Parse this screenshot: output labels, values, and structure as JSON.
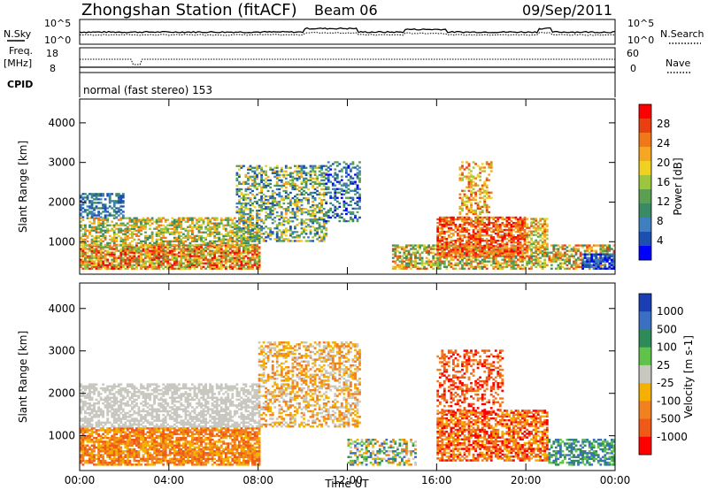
{
  "header": {
    "station": "Zhongshan Station (fitACF)",
    "beam": "Beam 06",
    "date": "09/Sep/2011"
  },
  "noise_panel": {
    "left_label": "N.Sky",
    "left_ticks": [
      "10^5",
      "10^0"
    ],
    "right_ticks": [
      "10^5",
      "10^0"
    ],
    "right_label": "N.Search"
  },
  "freq_panel": {
    "left_label_1": "Freq.",
    "left_label_2": "[MHz]",
    "left_ticks": [
      "18",
      "8"
    ],
    "right_ticks": [
      "60",
      "0"
    ],
    "right_label": "Nave"
  },
  "cpid_panel": {
    "label": "CPID",
    "text": "normal (fast stereo) 153"
  },
  "chart_data": [
    {
      "type": "heatmap",
      "quantity": "Power",
      "xlabel": "",
      "ylabel": "Slant Range [km]",
      "xlim": [
        0,
        24
      ],
      "ylim": [
        180,
        4600
      ],
      "yticks": [
        "1000",
        "2000",
        "3000",
        "4000"
      ],
      "colorbar_label": "Power [dB]",
      "colorbar_ticks": [
        "4",
        "8",
        "12",
        "16",
        "20",
        "24",
        "28"
      ],
      "colors": [
        "#0000ff",
        "#1c4fb0",
        "#3f7fbf",
        "#3a8a63",
        "#5aa050",
        "#9cc63c",
        "#f0d020",
        "#f5a623",
        "#f07818",
        "#e84010",
        "#ff0000"
      ]
    },
    {
      "type": "heatmap",
      "quantity": "Velocity",
      "xlabel": "Time UT",
      "ylabel": "Slant Range [km]",
      "xlim": [
        0,
        24
      ],
      "ylim": [
        180,
        4600
      ],
      "xticks": [
        "00:00",
        "04:00",
        "08:00",
        "12:00",
        "16:00",
        "20:00",
        "00:00"
      ],
      "yticks": [
        "1000",
        "2000",
        "3000",
        "4000"
      ],
      "colorbar_label": "Velocity [m s-1]",
      "colorbar_ticks": [
        "1000",
        "500",
        "100",
        "25",
        "-25",
        "-100",
        "-500",
        "-1000"
      ],
      "colors": [
        "#1a3fb5",
        "#3b6fc2",
        "#2e8b57",
        "#5fc24a",
        "#c8c8c0",
        "#f5b000",
        "#f08020",
        "#f05a18",
        "#ff0000"
      ]
    }
  ]
}
